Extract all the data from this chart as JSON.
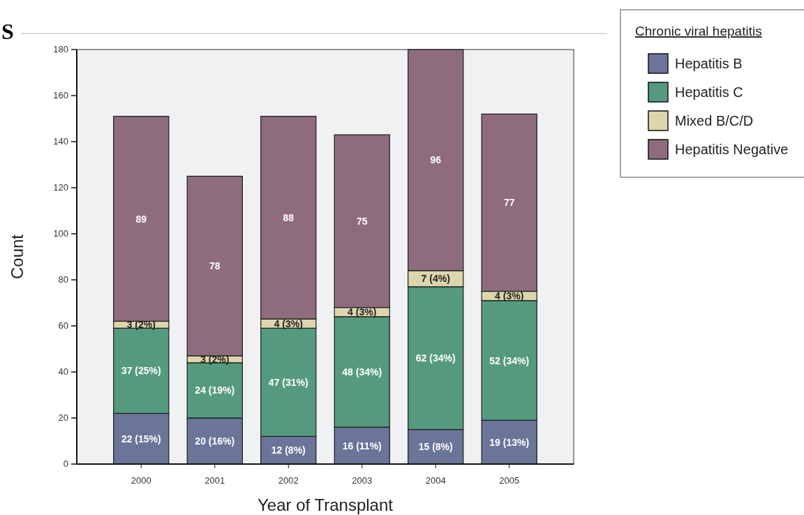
{
  "chart_data": {
    "type": "bar",
    "stacked": true,
    "title": "S",
    "xlabel": "Year of Transplant",
    "ylabel": "Count",
    "legend_title": "Chronic viral hepatitis",
    "legend": "top right",
    "categories": [
      "2000",
      "2001",
      "2002",
      "2003",
      "2004",
      "2005"
    ],
    "ylim": [
      0,
      180
    ],
    "yticks": [
      0,
      20,
      40,
      60,
      80,
      100,
      120,
      140,
      160,
      180
    ],
    "series": [
      {
        "name": "Hepatitis B",
        "color": "#6b7499",
        "values": [
          22,
          20,
          12,
          16,
          15,
          19
        ],
        "value_labels": [
          "22 (15%)",
          "20 (16%)",
          "12 (8%)",
          "16 (11%)",
          "15 (8%)",
          "19 (13%)"
        ]
      },
      {
        "name": "Hepatitis C",
        "color": "#559a7f",
        "values": [
          37,
          24,
          47,
          48,
          62,
          52
        ],
        "value_labels": [
          "37 (25%)",
          "24 (19%)",
          "47 (31%)",
          "48 (34%)",
          "62 (34%)",
          "52 (34%)"
        ]
      },
      {
        "name": "Mixed B/C/D",
        "color": "#ddd5ac",
        "values": [
          3,
          3,
          4,
          4,
          7,
          4
        ],
        "value_labels": [
          "3 (2%)",
          "3 (2%)",
          "4 (3%)",
          "4 (3%)",
          "7 (4%)",
          "4 (3%)"
        ]
      },
      {
        "name": "Hepatitis Negative",
        "color": "#8f6c7d",
        "values": [
          89,
          78,
          88,
          75,
          96,
          77
        ],
        "value_labels": [
          "89",
          "78",
          "88",
          "75",
          "96",
          "77"
        ]
      }
    ]
  }
}
